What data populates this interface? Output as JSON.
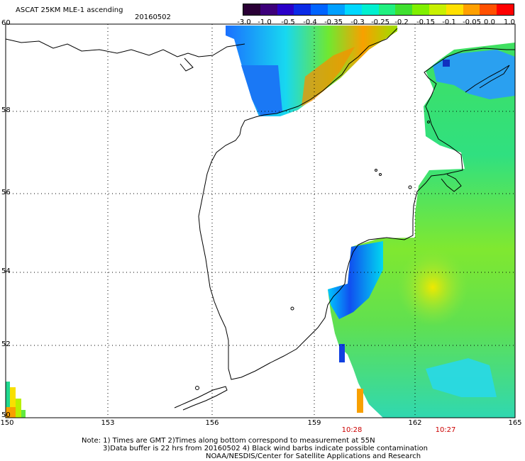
{
  "header": {
    "title": "ASCAT 25KM MLE-1 ascending",
    "date": "20160502"
  },
  "colorbar": {
    "colors": [
      "#2a0035",
      "#3d007a",
      "#2a00c8",
      "#0a2ae6",
      "#0064ff",
      "#00a0ff",
      "#00d8ff",
      "#00f0d0",
      "#20f080",
      "#40e030",
      "#80f000",
      "#c8f000",
      "#ffe000",
      "#ffa000",
      "#ff5000",
      "#ff0000"
    ],
    "labels": [
      "-3.0",
      "-1.0",
      "-0.5",
      "-0.4",
      "-0.35",
      "-0.3",
      "-0.25",
      "-0.2",
      "-0.15",
      "-0.1",
      "-0.05",
      "0.0",
      "1.0"
    ]
  },
  "axes": {
    "lat_labels": [
      "60",
      "58",
      "56",
      "54",
      "52",
      "50"
    ],
    "lon_labels": [
      "150",
      "153",
      "156",
      "159",
      "162",
      "165"
    ]
  },
  "times": [
    "10:28",
    "10:27"
  ],
  "notes": {
    "line1": "Note: 1) Times are GMT 2)Times along bottom correspond to measurement at 55N",
    "line2": "3)Data buffer is 22 hrs from 20160502 4) Black wind barbs indicate possible contamination",
    "line3": "NOAA/NESDIS/Center for Satellite Applications and Research"
  },
  "colors": {
    "frame": "#000000",
    "coast": "#000000",
    "time_text": "#cc0000"
  }
}
